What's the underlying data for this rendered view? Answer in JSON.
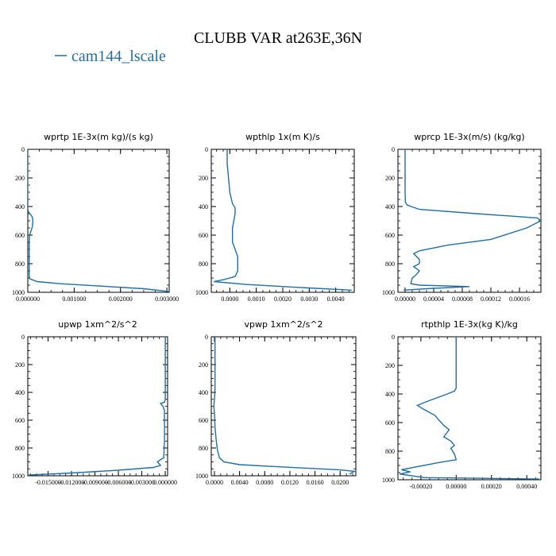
{
  "figure": {
    "title": "CLUBB VAR at263E,36N",
    "legend_label": "cam144_lscale",
    "line_color": "#1f6fa6"
  },
  "chart_data": [
    {
      "type": "line",
      "title": "wprtp  1E-3x(m kg)/(s kg)",
      "xlim": [
        0,
        0.00305
      ],
      "ylim": [
        1000,
        0
      ],
      "xticks": [
        "0.000000",
        "0.001000",
        "0.002000",
        "0.003000"
      ],
      "xtick_values": [
        0,
        0.001,
        0.002,
        0.003
      ],
      "yticks": [
        "0",
        "200",
        "400",
        "600",
        "800",
        "1000"
      ],
      "ytick_values": [
        0,
        200,
        400,
        600,
        800,
        1000
      ],
      "series": [
        {
          "x": [
            0,
            0,
            2e-05,
            7e-05,
            0.0001,
            0.00011,
            0.0001,
            7e-05,
            4e-05,
            3e-05,
            3e-05,
            3e-05,
            3e-05,
            4e-05,
            0.0002,
            0.0007,
            0.0015,
            0.0025,
            0.00305
          ],
          "y": [
            0,
            420,
            440,
            460,
            475,
            500,
            540,
            570,
            600,
            650,
            700,
            800,
            880,
            905,
            925,
            940,
            955,
            975,
            995
          ]
        }
      ]
    },
    {
      "type": "line",
      "title": "wpthlp  1x(m K)/s",
      "xlim": [
        -0.0007,
        0.0047
      ],
      "ylim": [
        1000,
        0
      ],
      "xticks": [
        "0.0000",
        "0.0010",
        "0.0020",
        "0.0030",
        "0.0040"
      ],
      "xtick_values": [
        0,
        0.001,
        0.002,
        0.003,
        0.004
      ],
      "yticks": [
        "0",
        "200",
        "400",
        "600",
        "800",
        "1000"
      ],
      "ytick_values": [
        0,
        200,
        400,
        600,
        800,
        1000
      ],
      "series": [
        {
          "x": [
            -0.0001,
            -0.0001,
            -5e-05,
            0,
            0.0001,
            0.0002,
            0.0002,
            0.0001,
            0.0001,
            0.0002,
            0.0003,
            0.0003,
            0.0003,
            0.0002,
            -0.0002,
            -0.0006,
            0.0006,
            0.0025,
            0.0046
          ],
          "y": [
            0,
            100,
            200,
            300,
            380,
            410,
            450,
            550,
            650,
            700,
            750,
            800,
            850,
            890,
            910,
            925,
            945,
            965,
            985
          ]
        }
      ]
    },
    {
      "type": "line",
      "title": "wprcp  1E-3x(m/s) (kg/kg)",
      "xlim": [
        -1e-05,
        0.00019
      ],
      "ylim": [
        1000,
        0
      ],
      "xticks": [
        "0.00000",
        "0.00004",
        "0.00008",
        "0.00012",
        "0.00016"
      ],
      "xtick_values": [
        0,
        4e-05,
        8e-05,
        0.00012,
        0.00016
      ],
      "yticks": [
        "0",
        "200",
        "400",
        "600",
        "800",
        "1000"
      ],
      "ytick_values": [
        0,
        200,
        400,
        600,
        800,
        1000
      ],
      "series": [
        {
          "x": [
            0,
            0,
            5e-07,
            3e-06,
            2e-05,
            0.0001,
            0.000185,
            0.00019,
            0.00017,
            0.00012,
            6e-05,
            2e-05,
            1.2e-05,
            2e-05,
            2e-05,
            1.2e-05,
            2e-05,
            1.5e-05,
            1e-05,
            8e-06,
            2e-05,
            9e-05,
            3e-05,
            -2e-06
          ],
          "y": [
            0,
            300,
            370,
            390,
            420,
            450,
            480,
            500,
            550,
            630,
            670,
            710,
            730,
            770,
            800,
            820,
            850,
            880,
            900,
            940,
            950,
            960,
            975,
            985
          ]
        }
      ]
    },
    {
      "type": "line",
      "title": "upwp  1xm^2/s^2",
      "xlim": [
        -0.0176,
        0.0003
      ],
      "ylim": [
        1000,
        0
      ],
      "xticks": [
        "-0.015000",
        "-0.012000",
        "-0.009000",
        "-0.006000",
        "-0.003000",
        "0.000000"
      ],
      "xtick_values": [
        -0.015,
        -0.012,
        -0.009,
        -0.006,
        -0.003,
        0
      ],
      "yticks": [
        "0",
        "200",
        "400",
        "600",
        "800",
        "1000"
      ],
      "ytick_values": [
        0,
        200,
        400,
        600,
        800,
        1000
      ],
      "series": [
        {
          "x": [
            0,
            0,
            0,
            -0.0001,
            -0.0006,
            -0.0003,
            -0.0001,
            -0.0001,
            -0.0001,
            -0.0002,
            -0.0005,
            -0.001,
            -0.0006,
            -0.0015,
            -0.006,
            -0.012,
            -0.0175
          ],
          "y": [
            0,
            300,
            450,
            470,
            480,
            500,
            530,
            600,
            750,
            870,
            880,
            900,
            925,
            940,
            960,
            980,
            995
          ]
        }
      ]
    },
    {
      "type": "line",
      "title": "vpwp  1xm^2/s^2",
      "xlim": [
        -0.0005,
        0.0225
      ],
      "ylim": [
        1000,
        0
      ],
      "xticks": [
        "0.0000",
        "0.0040",
        "0.0080",
        "0.0120",
        "0.0160",
        "0.0200"
      ],
      "xtick_values": [
        0,
        0.004,
        0.008,
        0.012,
        0.016,
        0.02
      ],
      "yticks": [
        "0",
        "200",
        "400",
        "600",
        "800",
        "1000"
      ],
      "ytick_values": [
        0,
        200,
        400,
        600,
        800,
        1000
      ],
      "series": [
        {
          "x": [
            0.0001,
            0.0001,
            0.0001,
            0,
            -0.0001,
            0,
            0.0001,
            0.0003,
            0.0005,
            0.0008,
            0.0015,
            0.004,
            0.01,
            0.016,
            0.02,
            0.0223,
            0.0215
          ],
          "y": [
            0,
            200,
            380,
            450,
            500,
            550,
            650,
            750,
            820,
            870,
            900,
            920,
            935,
            948,
            958,
            968,
            988
          ]
        }
      ]
    },
    {
      "type": "line",
      "title": "rtpthlp  1E-3x(kg K)/kg",
      "xlim": [
        -0.00033,
        0.00048
      ],
      "ylim": [
        1000,
        0
      ],
      "xticks": [
        "-0.00020",
        "0.00000",
        "0.00020",
        "0.00040"
      ],
      "xtick_values": [
        -0.0002,
        0,
        0.0002,
        0.0004
      ],
      "yticks": [
        "0",
        "200",
        "400",
        "600",
        "800",
        "1000"
      ],
      "ytick_values": [
        0,
        200,
        400,
        600,
        800,
        1000
      ],
      "series": [
        {
          "x": [
            0,
            0,
            0,
            -1e-05,
            -5e-05,
            -0.00016,
            -0.00022,
            -0.00018,
            -0.00012,
            -0.0001,
            -7e-05,
            -4e-05,
            -7e-05,
            -3e-05,
            -1e-05,
            -3e-05,
            -1e-05,
            0,
            -0.0001,
            -0.00031,
            -0.00026,
            -0.00032,
            -0.00018,
            0.00015,
            0.00047
          ],
          "y": [
            0,
            200,
            360,
            380,
            400,
            450,
            480,
            510,
            550,
            580,
            620,
            650,
            700,
            730,
            760,
            780,
            820,
            860,
            880,
            930,
            945,
            960,
            985,
            990,
            995
          ]
        }
      ]
    }
  ]
}
